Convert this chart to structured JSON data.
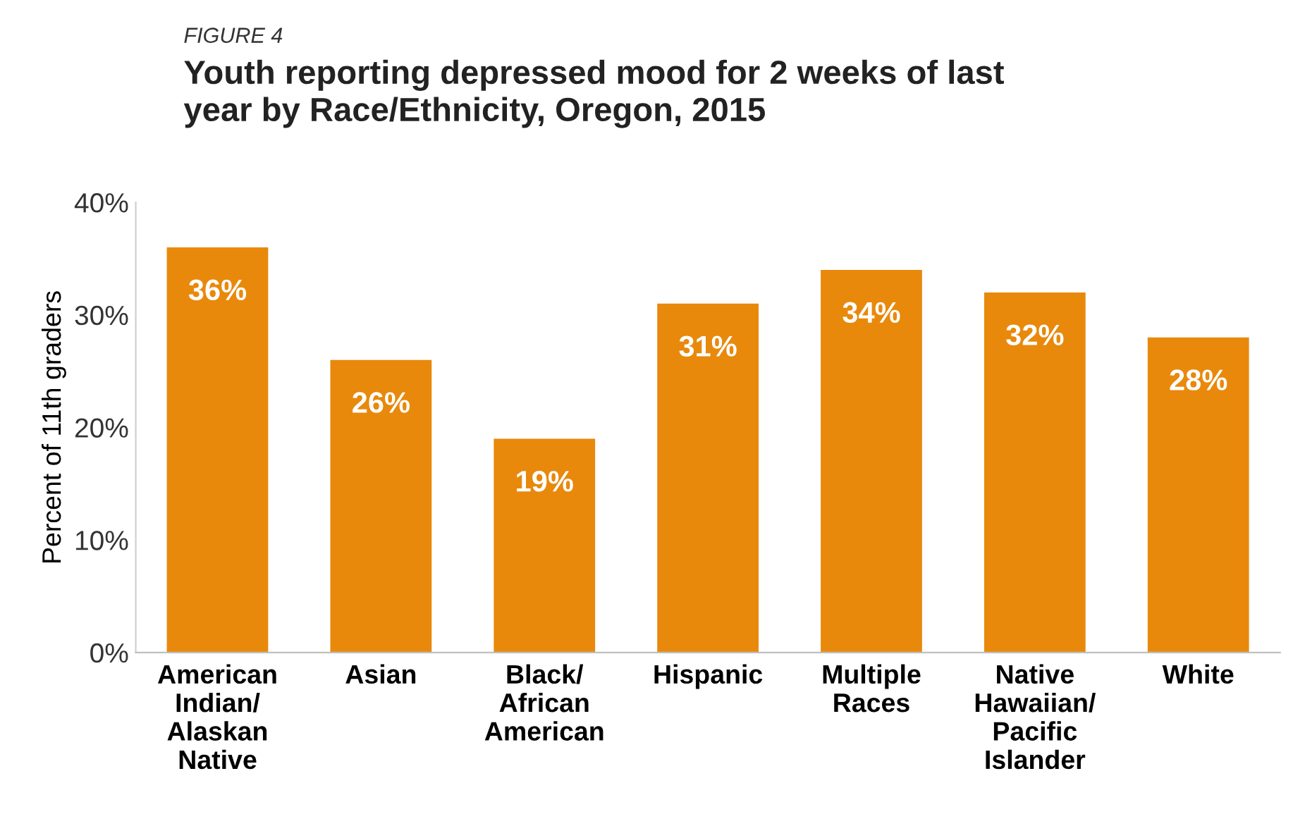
{
  "chart_data": {
    "type": "bar",
    "title": "Youth reporting depressed mood for 2 weeks of last\nyear by Race/Ethnicity, Oregon, 2015",
    "annotations": [
      "FIGURE 4"
    ],
    "ylabel": "Percent of 11th graders",
    "categories": [
      "American\nIndian/\nAlaskan\nNative",
      "Asian",
      "Black/\nAfrican\nAmerican",
      "Hispanic",
      "Multiple\nRaces",
      "Native\nHawaiian/\nPacific\nIslander",
      "White"
    ],
    "values": [
      36,
      26,
      19,
      31,
      34,
      32,
      28
    ],
    "color": "#e8890c",
    "value_labels": [
      "36%",
      "26%",
      "19%",
      "31%",
      "34%",
      "32%",
      "28%"
    ],
    "ylim": [
      0,
      40
    ],
    "yticks": [
      {
        "value": 0,
        "label": "0%"
      },
      {
        "value": 10,
        "label": "10%"
      },
      {
        "value": 20,
        "label": "20%"
      },
      {
        "value": 30,
        "label": "30%"
      },
      {
        "value": 40,
        "label": "40%"
      }
    ],
    "grid": false,
    "legend": false
  }
}
